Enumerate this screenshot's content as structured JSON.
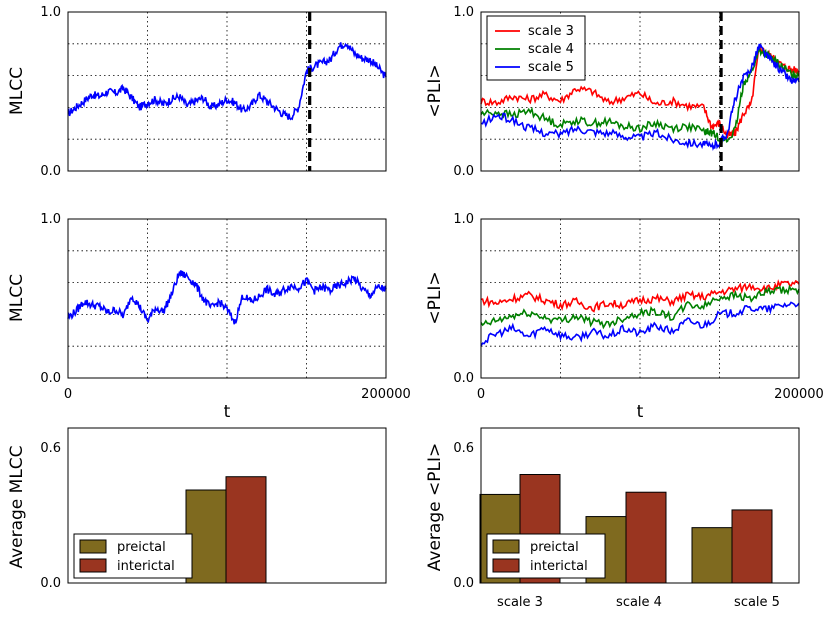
{
  "chart_data": [
    {
      "id": "mlcc_preictal",
      "type": "line",
      "ylabel": "MLCC",
      "xlabel": "",
      "ylim": [
        0,
        1.0
      ],
      "xlim": [
        0,
        200000
      ],
      "yticks": [
        "0.0",
        "",
        "",
        "",
        "",
        "1.0"
      ],
      "xticks": [],
      "vline_x": 152000,
      "series": [
        {
          "name": "MLCC",
          "color": "#0000ff",
          "x": [
            0,
            5000,
            10000,
            15000,
            20000,
            25000,
            30000,
            35000,
            40000,
            45000,
            50000,
            55000,
            60000,
            65000,
            70000,
            75000,
            80000,
            85000,
            90000,
            95000,
            100000,
            105000,
            110000,
            115000,
            120000,
            125000,
            130000,
            135000,
            140000,
            145000,
            150000,
            155000,
            160000,
            165000,
            170000,
            175000,
            180000,
            185000,
            190000,
            195000,
            200000
          ],
          "y": [
            0.36,
            0.4,
            0.44,
            0.48,
            0.47,
            0.5,
            0.49,
            0.52,
            0.46,
            0.4,
            0.43,
            0.45,
            0.42,
            0.45,
            0.47,
            0.41,
            0.44,
            0.46,
            0.4,
            0.42,
            0.45,
            0.43,
            0.38,
            0.41,
            0.48,
            0.44,
            0.4,
            0.36,
            0.34,
            0.4,
            0.63,
            0.66,
            0.68,
            0.7,
            0.78,
            0.81,
            0.74,
            0.71,
            0.7,
            0.65,
            0.59
          ]
        }
      ]
    },
    {
      "id": "pli_preictal",
      "type": "line",
      "ylabel": "<PLI>",
      "xlabel": "",
      "ylim": [
        0,
        1.0
      ],
      "xlim": [
        0,
        200000
      ],
      "yticks": [
        "0.0",
        "",
        "",
        "",
        "",
        "1.0"
      ],
      "xticks": [],
      "vline_x": 151000,
      "legend": {
        "position": "top-left",
        "entries": [
          "scale 3",
          "scale 4",
          "scale 5"
        ]
      },
      "series": [
        {
          "name": "scale 3",
          "color": "#ff0000",
          "x": [
            0,
            10000,
            20000,
            30000,
            40000,
            50000,
            60000,
            70000,
            80000,
            90000,
            100000,
            110000,
            120000,
            130000,
            140000,
            145000,
            150000,
            155000,
            160000,
            165000,
            170000,
            175000,
            180000,
            185000,
            190000,
            195000,
            200000
          ],
          "y": [
            0.44,
            0.43,
            0.47,
            0.45,
            0.48,
            0.44,
            0.52,
            0.5,
            0.43,
            0.46,
            0.49,
            0.42,
            0.44,
            0.41,
            0.4,
            0.28,
            0.3,
            0.22,
            0.24,
            0.36,
            0.42,
            0.78,
            0.74,
            0.7,
            0.66,
            0.64,
            0.63
          ]
        },
        {
          "name": "scale 4",
          "color": "#008000",
          "x": [
            0,
            10000,
            20000,
            30000,
            40000,
            50000,
            60000,
            70000,
            80000,
            90000,
            100000,
            110000,
            120000,
            130000,
            140000,
            145000,
            150000,
            155000,
            160000,
            165000,
            170000,
            175000,
            180000,
            185000,
            190000,
            195000,
            200000
          ],
          "y": [
            0.36,
            0.37,
            0.35,
            0.38,
            0.33,
            0.29,
            0.32,
            0.3,
            0.31,
            0.28,
            0.27,
            0.3,
            0.27,
            0.28,
            0.25,
            0.24,
            0.21,
            0.19,
            0.26,
            0.55,
            0.62,
            0.76,
            0.73,
            0.69,
            0.65,
            0.61,
            0.6
          ]
        },
        {
          "name": "scale 5",
          "color": "#0000ff",
          "x": [
            0,
            10000,
            20000,
            30000,
            40000,
            50000,
            60000,
            70000,
            80000,
            90000,
            100000,
            110000,
            120000,
            130000,
            140000,
            145000,
            150000,
            155000,
            160000,
            165000,
            170000,
            175000,
            180000,
            185000,
            190000,
            195000,
            200000
          ],
          "y": [
            0.29,
            0.35,
            0.32,
            0.27,
            0.24,
            0.23,
            0.27,
            0.25,
            0.24,
            0.22,
            0.21,
            0.24,
            0.2,
            0.18,
            0.17,
            0.15,
            0.18,
            0.24,
            0.46,
            0.58,
            0.65,
            0.79,
            0.72,
            0.67,
            0.62,
            0.57,
            0.56
          ]
        }
      ]
    },
    {
      "id": "mlcc_interictal",
      "type": "line",
      "ylabel": "MLCC",
      "xlabel": "t",
      "ylim": [
        0,
        1.0
      ],
      "xlim": [
        0,
        200000
      ],
      "yticks": [
        "0.0",
        "",
        "",
        "",
        "",
        "1.0"
      ],
      "xticks": [
        "0",
        "",
        "",
        "",
        "200000"
      ],
      "series": [
        {
          "name": "MLCC",
          "color": "#0000ff",
          "x": [
            0,
            5000,
            10000,
            15000,
            20000,
            25000,
            30000,
            35000,
            40000,
            45000,
            50000,
            55000,
            60000,
            65000,
            70000,
            75000,
            80000,
            85000,
            90000,
            95000,
            100000,
            105000,
            110000,
            115000,
            120000,
            125000,
            130000,
            135000,
            140000,
            145000,
            150000,
            155000,
            160000,
            165000,
            170000,
            175000,
            180000,
            185000,
            190000,
            195000,
            200000
          ],
          "y": [
            0.38,
            0.42,
            0.48,
            0.46,
            0.45,
            0.41,
            0.43,
            0.39,
            0.52,
            0.45,
            0.36,
            0.44,
            0.42,
            0.52,
            0.66,
            0.64,
            0.59,
            0.5,
            0.44,
            0.48,
            0.43,
            0.35,
            0.52,
            0.48,
            0.51,
            0.56,
            0.52,
            0.55,
            0.58,
            0.57,
            0.61,
            0.55,
            0.57,
            0.55,
            0.58,
            0.6,
            0.63,
            0.56,
            0.52,
            0.57,
            0.56
          ]
        }
      ]
    },
    {
      "id": "pli_interictal",
      "type": "line",
      "ylabel": "<PLI>",
      "xlabel": "t",
      "ylim": [
        0,
        1.0
      ],
      "xlim": [
        0,
        200000
      ],
      "yticks": [
        "0.0",
        "",
        "",
        "",
        "",
        "1.0"
      ],
      "xticks": [
        "0",
        "",
        "",
        "",
        "200000"
      ],
      "series": [
        {
          "name": "scale 3",
          "color": "#ff0000",
          "x": [
            0,
            10000,
            20000,
            30000,
            40000,
            50000,
            60000,
            70000,
            80000,
            90000,
            100000,
            110000,
            120000,
            130000,
            140000,
            150000,
            160000,
            170000,
            180000,
            190000,
            200000
          ],
          "y": [
            0.49,
            0.47,
            0.5,
            0.52,
            0.49,
            0.46,
            0.48,
            0.44,
            0.47,
            0.46,
            0.49,
            0.5,
            0.48,
            0.52,
            0.51,
            0.54,
            0.56,
            0.58,
            0.56,
            0.59,
            0.59
          ]
        },
        {
          "name": "scale 4",
          "color": "#008000",
          "x": [
            0,
            10000,
            20000,
            30000,
            40000,
            50000,
            60000,
            70000,
            80000,
            90000,
            100000,
            110000,
            120000,
            130000,
            140000,
            150000,
            160000,
            170000,
            180000,
            190000,
            200000
          ],
          "y": [
            0.33,
            0.36,
            0.39,
            0.41,
            0.38,
            0.36,
            0.39,
            0.35,
            0.34,
            0.38,
            0.41,
            0.42,
            0.38,
            0.46,
            0.45,
            0.51,
            0.52,
            0.5,
            0.54,
            0.55,
            0.56
          ]
        },
        {
          "name": "scale 5",
          "color": "#0000ff",
          "x": [
            0,
            10000,
            20000,
            30000,
            40000,
            50000,
            60000,
            70000,
            80000,
            90000,
            100000,
            110000,
            120000,
            130000,
            140000,
            150000,
            160000,
            170000,
            180000,
            190000,
            200000
          ],
          "y": [
            0.22,
            0.28,
            0.31,
            0.26,
            0.32,
            0.27,
            0.25,
            0.29,
            0.26,
            0.31,
            0.28,
            0.33,
            0.29,
            0.36,
            0.33,
            0.4,
            0.41,
            0.44,
            0.43,
            0.46,
            0.47
          ]
        }
      ]
    },
    {
      "id": "avg_mlcc",
      "type": "bar",
      "ylabel": "Average MLCC",
      "ylim": [
        0,
        0.7
      ],
      "yticks": [
        "0.0",
        "0.6"
      ],
      "yticks_values": [
        0,
        0.6
      ],
      "categories": [
        ""
      ],
      "legend": {
        "position": "bottom-left",
        "entries": [
          "preictal",
          "interictal"
        ]
      },
      "series": [
        {
          "name": "preictal",
          "color": "#7f6a1f",
          "values": [
            0.42
          ]
        },
        {
          "name": "interictal",
          "color": "#9a3520",
          "values": [
            0.48
          ]
        }
      ]
    },
    {
      "id": "avg_pli",
      "type": "bar",
      "ylabel": "Average <PLI>",
      "ylim": [
        0,
        0.7
      ],
      "yticks": [
        "0.0",
        "0.6"
      ],
      "yticks_values": [
        0,
        0.6
      ],
      "categories": [
        "scale 3",
        "scale 4",
        "scale 5"
      ],
      "legend": {
        "position": "bottom-left",
        "entries": [
          "preictal",
          "interictal"
        ]
      },
      "series": [
        {
          "name": "preictal",
          "color": "#7f6a1f",
          "values": [
            0.4,
            0.3,
            0.25
          ]
        },
        {
          "name": "interictal",
          "color": "#9a3520",
          "values": [
            0.49,
            0.41,
            0.33
          ]
        }
      ]
    }
  ]
}
